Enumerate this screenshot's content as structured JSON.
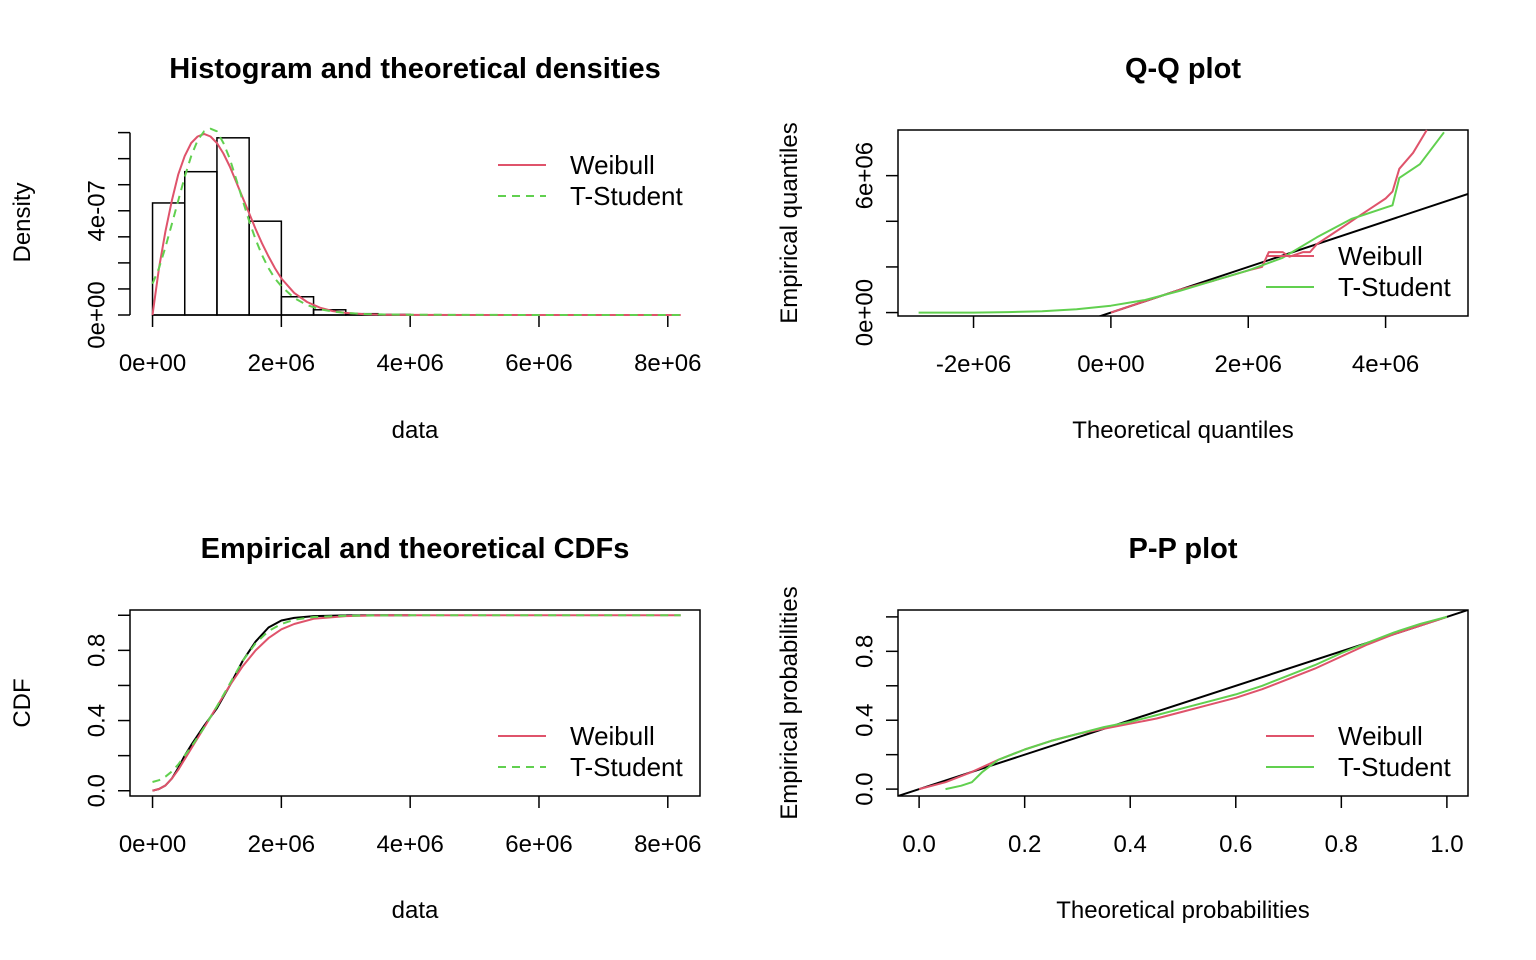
{
  "colors": {
    "weibull": "#DF536B",
    "tstudent": "#61D04F",
    "axis": "#000000"
  },
  "chart_data": [
    {
      "type": "bar",
      "panel": "histogram",
      "title": "Histogram and theoretical densities",
      "xlabel": "data",
      "ylabel": "Density",
      "xlim": [
        -350000.0,
        8500000.0
      ],
      "ylim": [
        0,
        7.1e-07
      ],
      "xticks": [
        {
          "v": 0,
          "label": "0e+00"
        },
        {
          "v": 2000000,
          "label": "2e+06"
        },
        {
          "v": 4000000,
          "label": "4e+06"
        },
        {
          "v": 6000000,
          "label": "6e+06"
        },
        {
          "v": 8000000,
          "label": "8e+06"
        }
      ],
      "yticks": [
        {
          "v": 0,
          "label": "0e+00"
        },
        {
          "v": 1e-07
        },
        {
          "v": 2e-07
        },
        {
          "v": 3e-07
        },
        {
          "v": 4e-07,
          "label": "4e-07"
        },
        {
          "v": 5e-07
        },
        {
          "v": 6e-07
        },
        {
          "v": 7e-07
        }
      ],
      "bins": {
        "breaks": [
          0,
          500000,
          1000000,
          1500000,
          2000000,
          2500000,
          3000000,
          3500000,
          4000000
        ],
        "density": [
          4.3e-07,
          5.5e-07,
          6.8e-07,
          3.6e-07,
          7e-08,
          2e-08,
          5e-09,
          2e-09
        ]
      },
      "series": [
        {
          "name": "Weibull",
          "style": "solid",
          "x": [
            0,
            100000,
            200000,
            300000,
            400000,
            500000,
            600000,
            700000,
            800000,
            900000,
            1000000,
            1100000,
            1200000,
            1300000,
            1400000,
            1500000,
            1600000,
            1700000,
            1800000,
            1900000,
            2000000,
            2200000,
            2400000,
            2600000,
            2800000,
            3000000,
            3300000,
            3600000,
            4000000,
            5000000,
            6000000,
            7000000,
            8200000
          ],
          "y": [
            0,
            1.8e-07,
            3.2e-07,
            4.4e-07,
            5.4e-07,
            6.1e-07,
            6.6e-07,
            6.85e-07,
            6.95e-07,
            6.85e-07,
            6.6e-07,
            6.2e-07,
            5.7e-07,
            5.1e-07,
            4.5e-07,
            3.9e-07,
            3.3e-07,
            2.75e-07,
            2.25e-07,
            1.8e-07,
            1.4e-07,
            8.5e-08,
            5e-08,
            2.8e-08,
            1.5e-08,
            8e-09,
            3e-09,
            1e-09,
            2e-10,
            0,
            0,
            0,
            0
          ]
        },
        {
          "name": "T-Student",
          "style": "dashed",
          "x": [
            0,
            100000,
            200000,
            300000,
            400000,
            500000,
            600000,
            700000,
            800000,
            900000,
            1000000,
            1100000,
            1200000,
            1300000,
            1400000,
            1500000,
            1600000,
            1700000,
            1800000,
            1900000,
            2000000,
            2200000,
            2400000,
            2600000,
            2800000,
            3000000,
            3300000,
            3600000,
            4000000,
            5000000,
            6000000,
            7000000,
            8200000
          ],
          "y": [
            1.2e-07,
            1.8e-07,
            2.6e-07,
            3.5e-07,
            4.4e-07,
            5.3e-07,
            6.1e-07,
            6.7e-07,
            7.05e-07,
            7.15e-07,
            7.05e-07,
            6.6e-07,
            6e-07,
            5.2e-07,
            4.4e-07,
            3.6e-07,
            2.9e-07,
            2.3e-07,
            1.8e-07,
            1.4e-07,
            1.1e-07,
            6.5e-08,
            3.8e-08,
            2.2e-08,
            1.3e-08,
            8e-09,
            4e-09,
            2e-09,
            1e-09,
            3e-10,
            1e-10,
            0,
            0
          ]
        }
      ],
      "legend": "top-right",
      "box": false
    },
    {
      "type": "line",
      "panel": "qq",
      "title": "Q-Q plot",
      "xlabel": "Theoretical quantiles",
      "ylabel": "Empirical quantiles",
      "xlim": [
        -3100000.0,
        5200000.0
      ],
      "ylim": [
        -150000.0,
        8000000.0
      ],
      "xticks": [
        {
          "v": -2000000,
          "label": "-2e+06"
        },
        {
          "v": 0,
          "label": "0e+00"
        },
        {
          "v": 2000000,
          "label": "2e+06"
        },
        {
          "v": 4000000,
          "label": "4e+06"
        }
      ],
      "yticks": [
        {
          "v": 0,
          "label": "0e+00"
        },
        {
          "v": 2000000
        },
        {
          "v": 4000000
        },
        {
          "v": 6000000,
          "label": "6e+06"
        }
      ],
      "series": [
        {
          "name": "Weibull",
          "style": "solid",
          "x": [
            0,
            500000,
            1000000,
            1500000,
            2000000,
            2200000,
            2300000,
            2500000,
            2600000,
            2800000,
            2900000,
            3000000,
            3200000,
            3400000,
            3600000,
            3800000,
            4000000,
            4100000,
            4200000,
            4400000,
            4600000
          ],
          "y": [
            0,
            500000,
            1000000,
            1400000,
            1850000,
            2000000,
            2650000,
            2650000,
            2450000,
            2650000,
            2650000,
            3000000,
            3400000,
            3800000,
            4200000,
            4600000,
            5000000,
            5300000,
            6300000,
            7000000,
            8000000
          ]
        },
        {
          "name": "T-Student",
          "style": "solid",
          "x": [
            -2800000,
            -2000000,
            -1500000,
            -1000000,
            -500000,
            0,
            500000,
            1000000,
            1500000,
            2000000,
            2500000,
            3000000,
            3500000,
            4000000,
            4100000,
            4200000,
            4500000,
            4850000
          ],
          "y": [
            0,
            0,
            20000,
            60000,
            150000,
            300000,
            550000,
            950000,
            1400000,
            1850000,
            2400000,
            3300000,
            4100000,
            4600000,
            4700000,
            5900000,
            6500000,
            7900000
          ]
        }
      ],
      "refline": [
        [
          -3100000,
          -3100000
        ],
        [
          5200000,
          5200000
        ]
      ],
      "legend": "right",
      "box": true
    },
    {
      "type": "line",
      "panel": "cdf",
      "title": "Empirical and theoretical CDFs",
      "xlabel": "data",
      "ylabel": "CDF",
      "xlim": [
        -350000.0,
        8500000.0
      ],
      "ylim": [
        -0.03,
        1.03
      ],
      "xticks": [
        {
          "v": 0,
          "label": "0e+00"
        },
        {
          "v": 2000000,
          "label": "2e+06"
        },
        {
          "v": 4000000,
          "label": "4e+06"
        },
        {
          "v": 6000000,
          "label": "6e+06"
        },
        {
          "v": 8000000,
          "label": "8e+06"
        }
      ],
      "yticks": [
        {
          "v": 0.0,
          "label": "0.0"
        },
        {
          "v": 0.2
        },
        {
          "v": 0.4,
          "label": "0.4"
        },
        {
          "v": 0.6
        },
        {
          "v": 0.8,
          "label": "0.8"
        },
        {
          "v": 1.0
        }
      ],
      "series": [
        {
          "name": "empirical",
          "style": "solid-black",
          "x": [
            0,
            100000,
            200000,
            300000,
            400000,
            500000,
            600000,
            800000,
            1000000,
            1200000,
            1400000,
            1600000,
            1800000,
            2000000,
            2200000,
            2500000,
            3000000,
            3500000,
            4000000
          ],
          "y": [
            0,
            0.01,
            0.03,
            0.07,
            0.13,
            0.2,
            0.26,
            0.37,
            0.47,
            0.6,
            0.74,
            0.85,
            0.93,
            0.97,
            0.985,
            0.995,
            0.999,
            1.0,
            1.0
          ]
        },
        {
          "name": "Weibull",
          "style": "solid",
          "x": [
            0,
            100000,
            200000,
            300000,
            400000,
            500000,
            600000,
            800000,
            1000000,
            1200000,
            1400000,
            1600000,
            1800000,
            2000000,
            2200000,
            2500000,
            3000000,
            3500000,
            4000000,
            5000000,
            6000000,
            7000000,
            8200000
          ],
          "y": [
            0,
            0.01,
            0.03,
            0.07,
            0.12,
            0.18,
            0.24,
            0.36,
            0.48,
            0.6,
            0.71,
            0.8,
            0.87,
            0.92,
            0.95,
            0.98,
            0.995,
            0.999,
            1.0,
            1.0,
            1.0,
            1.0,
            1.0
          ]
        },
        {
          "name": "T-Student",
          "style": "dashed",
          "x": [
            0,
            100000,
            200000,
            300000,
            400000,
            500000,
            600000,
            800000,
            1000000,
            1200000,
            1400000,
            1600000,
            1800000,
            2000000,
            2200000,
            2500000,
            3000000,
            3500000,
            4000000,
            5000000,
            6000000,
            7000000,
            8200000
          ],
          "y": [
            0.05,
            0.06,
            0.08,
            0.11,
            0.15,
            0.2,
            0.25,
            0.36,
            0.48,
            0.61,
            0.74,
            0.84,
            0.91,
            0.95,
            0.975,
            0.99,
            0.997,
            0.999,
            1.0,
            1.0,
            1.0,
            1.0,
            1.0
          ]
        }
      ],
      "legend": "bottom-right",
      "box": true
    },
    {
      "type": "line",
      "panel": "pp",
      "title": "P-P plot",
      "xlabel": "Theoretical probabilities",
      "ylabel": "Empirical probabilities",
      "xlim": [
        -0.04,
        1.04
      ],
      "ylim": [
        -0.04,
        1.04
      ],
      "xticks": [
        {
          "v": 0.0,
          "label": "0.0"
        },
        {
          "v": 0.2,
          "label": "0.2"
        },
        {
          "v": 0.4,
          "label": "0.4"
        },
        {
          "v": 0.6,
          "label": "0.6"
        },
        {
          "v": 0.8,
          "label": "0.8"
        },
        {
          "v": 1.0,
          "label": "1.0"
        }
      ],
      "yticks": [
        {
          "v": 0.0,
          "label": "0.0"
        },
        {
          "v": 0.2
        },
        {
          "v": 0.4,
          "label": "0.4"
        },
        {
          "v": 0.6
        },
        {
          "v": 0.8,
          "label": "0.8"
        },
        {
          "v": 1.0
        }
      ],
      "series": [
        {
          "name": "Weibull",
          "style": "solid",
          "x": [
            0,
            0.05,
            0.1,
            0.15,
            0.2,
            0.25,
            0.3,
            0.35,
            0.4,
            0.45,
            0.5,
            0.55,
            0.6,
            0.65,
            0.7,
            0.75,
            0.8,
            0.85,
            0.9,
            0.95,
            1.0
          ],
          "y": [
            0,
            0.04,
            0.1,
            0.17,
            0.23,
            0.28,
            0.32,
            0.35,
            0.38,
            0.41,
            0.45,
            0.49,
            0.53,
            0.58,
            0.64,
            0.7,
            0.77,
            0.84,
            0.9,
            0.95,
            1.0
          ]
        },
        {
          "name": "T-Student",
          "style": "solid",
          "x": [
            0.05,
            0.08,
            0.1,
            0.12,
            0.15,
            0.2,
            0.25,
            0.3,
            0.35,
            0.4,
            0.45,
            0.5,
            0.55,
            0.6,
            0.65,
            0.7,
            0.75,
            0.8,
            0.85,
            0.9,
            0.95,
            1.0
          ],
          "y": [
            0.0,
            0.02,
            0.04,
            0.1,
            0.17,
            0.23,
            0.28,
            0.32,
            0.36,
            0.39,
            0.43,
            0.47,
            0.51,
            0.55,
            0.6,
            0.66,
            0.72,
            0.79,
            0.85,
            0.91,
            0.96,
            1.0
          ]
        }
      ],
      "refline": [
        [
          -0.04,
          -0.04
        ],
        [
          1.04,
          1.04
        ]
      ],
      "legend": "bottom-right",
      "box": true
    }
  ]
}
